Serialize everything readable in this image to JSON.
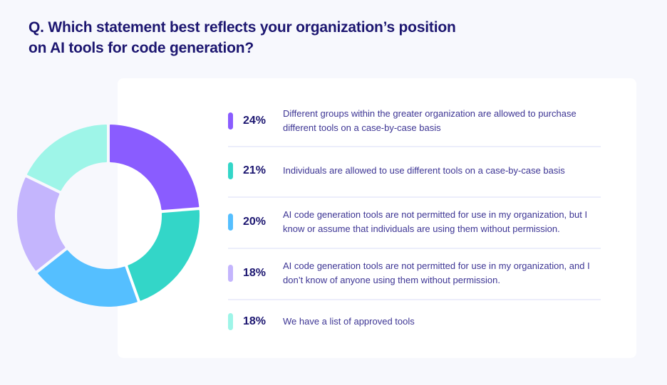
{
  "title": "Q. Which statement best reflects your organization’s position on AI tools for code generation?",
  "chart_data": {
    "type": "pie",
    "title": "Q. Which statement best reflects your organization’s position on AI tools for code generation?",
    "categories": [
      "Different groups within the greater organization are allowed to purchase different tools on a case-by-case basis",
      "Individuals are allowed to use different tools on a case-by-case basis",
      "AI code generation tools are not permitted for use in my organization, but I know or assume that individuals are using them without permission.",
      "AI code generation tools are not permitted for use in my organization, and I don’t know of anyone using them without permission.",
      "We have a list of approved tools"
    ],
    "values": [
      24,
      21,
      20,
      18,
      18
    ],
    "labels": [
      "24%",
      "21%",
      "20%",
      "18%",
      "18%"
    ],
    "colors": [
      "#8a5cff",
      "#33d6c8",
      "#55bfff",
      "#c4b5fd",
      "#9ef5e8"
    ],
    "legend": "right"
  }
}
